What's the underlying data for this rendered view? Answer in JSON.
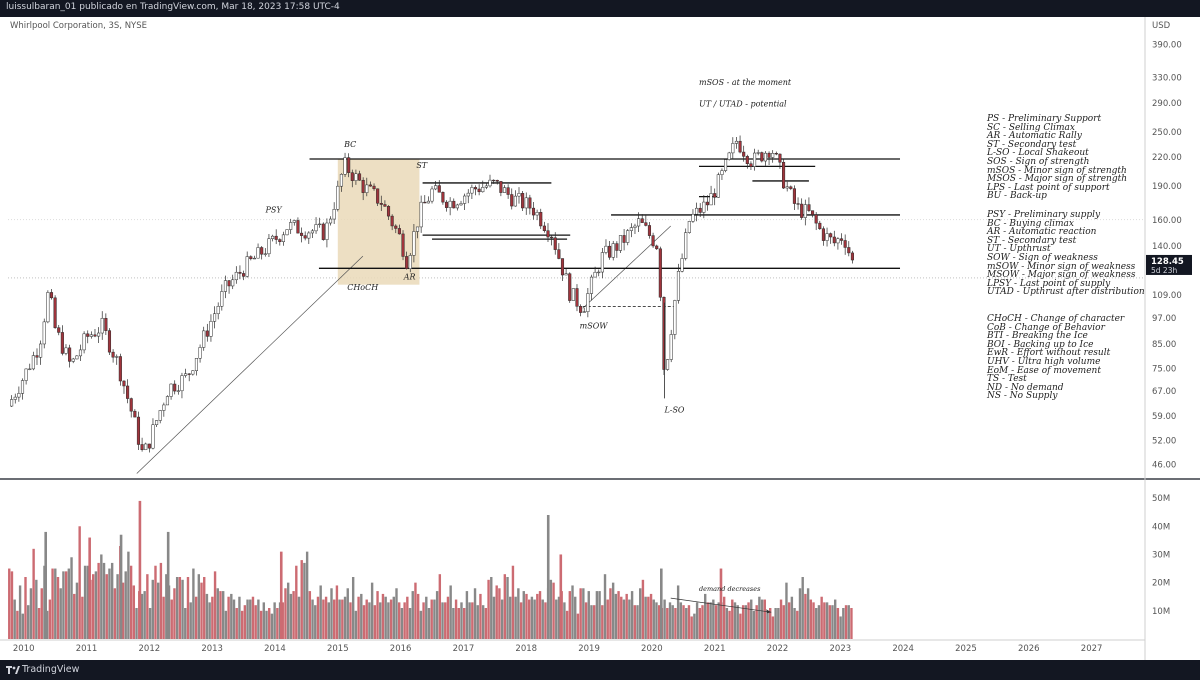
{
  "header": {
    "publisher": "luissulbaran_01 publicado en TradingView.com, Mar 18, 2023 17:58 UTC-4"
  },
  "symbol_line": "Whirlpool Corporation, 3S, NYSE",
  "footer": {
    "brand": "TradingView"
  },
  "colors": {
    "up": "#8a8a8a",
    "down": "#d9777d",
    "candle_body_up": "#ffffff",
    "candle_border": "#2a2a2a",
    "volume_up": "#888888",
    "volume_down": "#cc6b72",
    "range_box": "#ead9b8"
  },
  "chart_data": {
    "type": "candlestick",
    "price_axis": {
      "label": "USD",
      "scale": "log",
      "ticks": [
        390,
        330,
        290,
        250,
        220,
        190,
        160,
        140,
        128.45,
        109,
        97,
        85,
        75,
        67,
        59,
        52,
        46
      ],
      "tick_labels": [
        "390.00",
        "330.00",
        "290.00",
        "250.00",
        "220.00",
        "190.00",
        "160.00",
        "140.00",
        "128.45",
        "109.00",
        "97.00",
        "85.00",
        "75.00",
        "67.00",
        "59.00",
        "52.00",
        "46.00"
      ],
      "last_price": "128.45",
      "last_price_sub": "5d 23h",
      "range": [
        43,
        440
      ]
    },
    "time_axis": {
      "labels": [
        "2010",
        "2011",
        "2012",
        "2013",
        "2014",
        "2015",
        "2016",
        "2017",
        "2018",
        "2019",
        "2020",
        "2021",
        "2022",
        "2023",
        "2024",
        "2025",
        "2026",
        "2027"
      ],
      "range": [
        2009.75,
        2027.85
      ]
    },
    "volume_axis": {
      "ticks": [
        10,
        20,
        30,
        40,
        50
      ],
      "tick_labels": [
        "10M",
        "20M",
        "30M",
        "40M",
        "50M"
      ],
      "unit": "M"
    },
    "price_path": [
      [
        2009.75,
        62
      ],
      [
        2010.0,
        72
      ],
      [
        2010.25,
        85
      ],
      [
        2010.4,
        112
      ],
      [
        2010.5,
        92
      ],
      [
        2010.75,
        76
      ],
      [
        2011.0,
        88
      ],
      [
        2011.25,
        93
      ],
      [
        2011.5,
        77
      ],
      [
        2011.75,
        58
      ],
      [
        2011.9,
        48
      ],
      [
        2012.0,
        52
      ],
      [
        2012.3,
        68
      ],
      [
        2012.6,
        72
      ],
      [
        2012.9,
        90
      ],
      [
        2013.2,
        112
      ],
      [
        2013.5,
        125
      ],
      [
        2013.9,
        140
      ],
      [
        2014.2,
        155
      ],
      [
        2014.5,
        152
      ],
      [
        2014.8,
        150
      ],
      [
        2015.0,
        185
      ],
      [
        2015.1,
        212
      ],
      [
        2015.4,
        190
      ],
      [
        2015.7,
        175
      ],
      [
        2016.0,
        145
      ],
      [
        2016.1,
        130
      ],
      [
        2016.3,
        165
      ],
      [
        2016.5,
        185
      ],
      [
        2016.8,
        175
      ],
      [
        2017.2,
        188
      ],
      [
        2017.5,
        192
      ],
      [
        2017.8,
        178
      ],
      [
        2018.1,
        170
      ],
      [
        2018.4,
        150
      ],
      [
        2018.7,
        110
      ],
      [
        2018.9,
        102
      ],
      [
        2019.2,
        132
      ],
      [
        2019.5,
        142
      ],
      [
        2019.8,
        158
      ],
      [
        2020.1,
        140
      ],
      [
        2020.2,
        72
      ],
      [
        2020.4,
        115
      ],
      [
        2020.6,
        160
      ],
      [
        2020.9,
        175
      ],
      [
        2021.1,
        198
      ],
      [
        2021.35,
        240
      ],
      [
        2021.6,
        215
      ],
      [
        2021.9,
        232
      ],
      [
        2022.1,
        195
      ],
      [
        2022.3,
        170
      ],
      [
        2022.5,
        165
      ],
      [
        2022.7,
        150
      ],
      [
        2022.9,
        142
      ],
      [
        2023.05,
        148
      ],
      [
        2023.2,
        128
      ]
    ],
    "horizontal_levels": [
      {
        "price": 218,
        "from": 2014.55,
        "to": 2023.95
      },
      {
        "price": 193,
        "from": 2016.35,
        "to": 2018.4
      },
      {
        "price": 148,
        "from": 2016.35,
        "to": 2018.7
      },
      {
        "price": 145,
        "from": 2016.5,
        "to": 2018.65
      },
      {
        "price": 125,
        "from": 2014.7,
        "to": 2023.95
      },
      {
        "price": 164,
        "from": 2019.35,
        "to": 2023.95
      },
      {
        "price": 210,
        "from": 2020.75,
        "to": 2022.6
      },
      {
        "price": 195,
        "from": 2021.6,
        "to": 2022.5
      },
      {
        "price": 180,
        "from": 2020.75,
        "to": 2021.05
      }
    ],
    "dashed_levels": [
      {
        "price": 103,
        "from": 2018.9,
        "to": 2020.4
      }
    ],
    "range_box": {
      "from": 2015.0,
      "to": 2016.3,
      "top": 218,
      "bottom": 115
    },
    "trend_lines": [
      {
        "from": [
          2011.8,
          44
        ],
        "to": [
          2015.4,
          133
        ]
      },
      {
        "from": [
          2018.9,
          102
        ],
        "to": [
          2020.3,
          155
        ]
      }
    ],
    "annotations": [
      {
        "text": "BC",
        "x": 2015.1,
        "price": 232
      },
      {
        "text": "PSY",
        "x": 2013.85,
        "price": 166
      },
      {
        "text": "ST",
        "x": 2016.25,
        "price": 208
      },
      {
        "text": "CHoCH",
        "x": 2015.15,
        "price": 112
      },
      {
        "text": "AR",
        "x": 2016.05,
        "price": 118
      },
      {
        "text": "mSOW",
        "x": 2018.85,
        "price": 92
      },
      {
        "text": "L-SO",
        "x": 2020.2,
        "price": 60
      },
      {
        "text": "mSOS - at the moment",
        "x": 2020.75,
        "price": 318
      },
      {
        "text": "UT / UTAD - potential",
        "x": 2020.75,
        "price": 285
      },
      {
        "text": "demand decreases",
        "x": 2020.75,
        "volume": 17
      }
    ],
    "volume_series_M": [
      25,
      24,
      14,
      10,
      19,
      9,
      22,
      12,
      18,
      32,
      21,
      11,
      18,
      26,
      10,
      14,
      25,
      25,
      22,
      18,
      24,
      24,
      25,
      29,
      16,
      20,
      40,
      15,
      26,
      26,
      21,
      23,
      24,
      27,
      30,
      27,
      23,
      25,
      27,
      18,
      23,
      33,
      20,
      24,
      31,
      26,
      19,
      11,
      17,
      16,
      17,
      23,
      11,
      21,
      26,
      20,
      27,
      15,
      23,
      19,
      14,
      18,
      22,
      22,
      21,
      11,
      22,
      13,
      25,
      15,
      23,
      20,
      22,
      16,
      13,
      15,
      24,
      18,
      17,
      17,
      10,
      15,
      16,
      14,
      11,
      15,
      10,
      12,
      14,
      14,
      15,
      12,
      14,
      10,
      13,
      10,
      11,
      9,
      13,
      11,
      13,
      13,
      18,
      20,
      16,
      17,
      26,
      15,
      28,
      27,
      31,
      17,
      14,
      12,
      15,
      19,
      14,
      15,
      13,
      18,
      14,
      19,
      14,
      14,
      15,
      18,
      13,
      22,
      10,
      15,
      16,
      12,
      14,
      13,
      20,
      12,
      17,
      13,
      16,
      15,
      13,
      14,
      15,
      18,
      13,
      11,
      13,
      15,
      11,
      17,
      20,
      16,
      10,
      13,
      15,
      11,
      14,
      14,
      17,
      23,
      13,
      13,
      15,
      19,
      11,
      14,
      11,
      13,
      11,
      17,
      13,
      13,
      18,
      12,
      16,
      12,
      11,
      21,
      22,
      15,
      19,
      18,
      14,
      23,
      22,
      15,
      26,
      15,
      18,
      13,
      17,
      16,
      14,
      15,
      14,
      16,
      17,
      14,
      13,
      18,
      21,
      20,
      14,
      15,
      17,
      13,
      10,
      17,
      19,
      15,
      9,
      18,
      18,
      13,
      17,
      12,
      12,
      17,
      17,
      12,
      23,
      14,
      18,
      20,
      16,
      17,
      15,
      14,
      16,
      14,
      17,
      12,
      12,
      18,
      21,
      15,
      15,
      16,
      14,
      13,
      12,
      11,
      14,
      11,
      13,
      12,
      11,
      19,
      13,
      12,
      11,
      12,
      8,
      9,
      13,
      11,
      12,
      16,
      13,
      13,
      14,
      12,
      13,
      13,
      15,
      11,
      10,
      14,
      13,
      12,
      9,
      12,
      12,
      13,
      14,
      10,
      12,
      15,
      14,
      14,
      10,
      11,
      8,
      11,
      11,
      14,
      12,
      20,
      13,
      15,
      11,
      10,
      18,
      22,
      16,
      18,
      14,
      13,
      11,
      12,
      15,
      13,
      13,
      12,
      12,
      14,
      11,
      8,
      11,
      12,
      12,
      11
    ],
    "volume_spikes": [
      {
        "x": 2010.35,
        "v": 38
      },
      {
        "x": 2011.05,
        "v": 36
      },
      {
        "x": 2011.55,
        "v": 37
      },
      {
        "x": 2011.85,
        "v": 49
      },
      {
        "x": 2012.3,
        "v": 38
      },
      {
        "x": 2014.1,
        "v": 31
      },
      {
        "x": 2018.35,
        "v": 44
      },
      {
        "x": 2018.55,
        "v": 30
      },
      {
        "x": 2020.15,
        "v": 25
      },
      {
        "x": 2021.1,
        "v": 25
      }
    ]
  },
  "legend": {
    "group1": [
      "PS - Preliminary Support",
      "SC - Selling Climax",
      "AR - Automatic Rally",
      "ST - Secondary test",
      "L-SO - Local Shakeout",
      "SOS - Sign of strength",
      "mSOS - Minor sign of strength",
      "MSOS - Major sign of strength",
      "LPS - Last point of support",
      "BU - Back-up"
    ],
    "group2": [
      "PSY - Preliminary supply",
      "BC - Buying climax",
      "AR - Automatic reaction",
      "ST - Secondary test",
      "UT - Upthrust",
      "SOW - Sign of weakness",
      "mSOW - Minor sign of weakness",
      "MSOW - Major sign of weakness",
      "LPSY - Last point of supply",
      "UTAD - Upthrust after distribution"
    ],
    "group3": [
      "CHoCH - Change of character",
      "CoB - Change of Behavior",
      "BTI - Breaking the Ice",
      "BOI - Backing up to Ice",
      "EwR - Effort without result",
      "UHV - Ultra high volume",
      "EoM - Ease of movement",
      "TS - Test",
      "ND - No demand",
      "NS - No Supply"
    ]
  }
}
